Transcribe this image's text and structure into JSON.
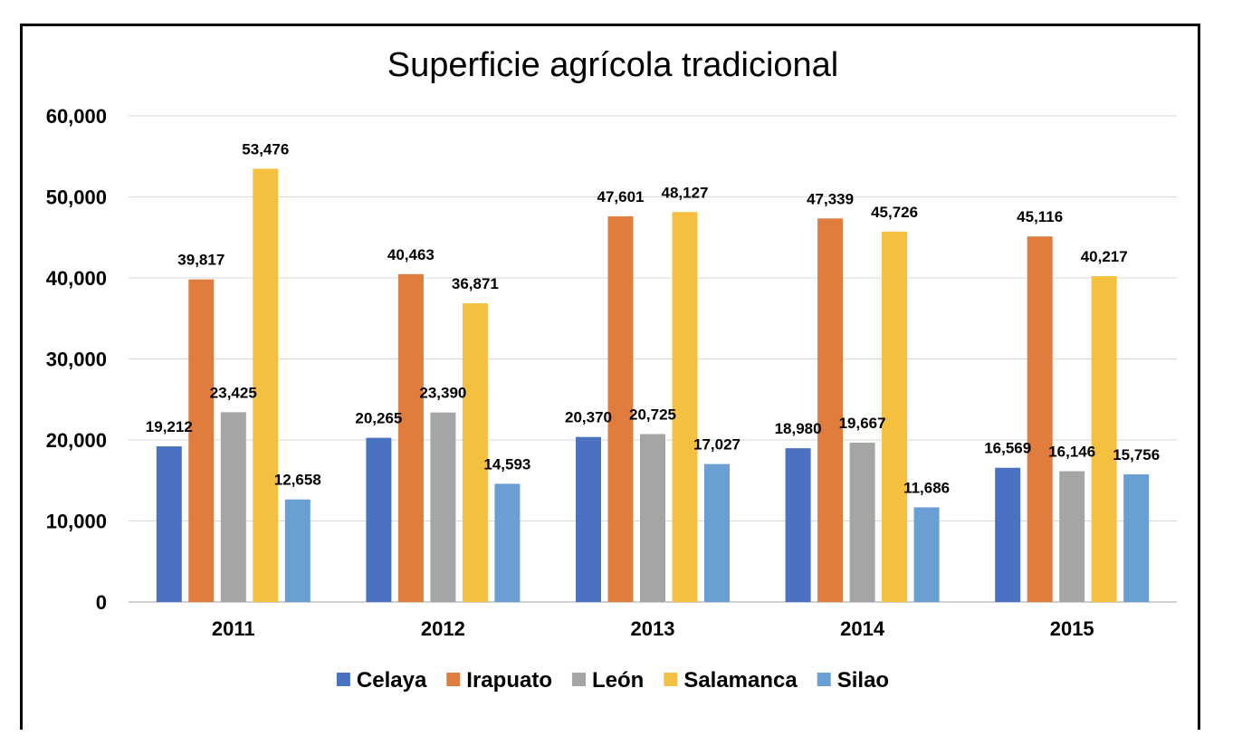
{
  "chart_data": {
    "type": "bar",
    "title": "Superficie agrícola tradicional",
    "xlabel": "",
    "ylabel": "",
    "categories": [
      "2011",
      "2012",
      "2013",
      "2014",
      "2015"
    ],
    "ylim": [
      0,
      60000
    ],
    "yticks": [
      0,
      10000,
      20000,
      30000,
      40000,
      50000,
      60000
    ],
    "ytick_labels": [
      "0",
      "10,000",
      "20,000",
      "30,000",
      "40,000",
      "50,000",
      "60,000"
    ],
    "grid": true,
    "legend_position": "bottom",
    "series": [
      {
        "name": "Celaya",
        "color": "#4a72c0",
        "values": [
          19212,
          20265,
          20370,
          18980,
          16569
        ],
        "labels": [
          "19,212",
          "20,265",
          "20,370",
          "18,980",
          "16,569"
        ]
      },
      {
        "name": "Irapuato",
        "color": "#e07c3e",
        "values": [
          39817,
          40463,
          47601,
          47339,
          45116
        ],
        "labels": [
          "39,817",
          "40,463",
          "47,601",
          "47,339",
          "45,116"
        ]
      },
      {
        "name": "León",
        "color": "#a5a5a5",
        "values": [
          23425,
          23390,
          20725,
          19667,
          16146
        ],
        "labels": [
          "23,425",
          "23,390",
          "20,725",
          "19,667",
          "16,146"
        ]
      },
      {
        "name": "Salamanca",
        "color": "#f5c040",
        "values": [
          53476,
          36871,
          48127,
          45726,
          40217
        ],
        "labels": [
          "53,476",
          "36,871",
          "48,127",
          "45,726",
          "40,217"
        ]
      },
      {
        "name": "Silao",
        "color": "#6a9fd4",
        "values": [
          12658,
          14593,
          17027,
          11686,
          15756
        ],
        "labels": [
          "12,658",
          "14,593",
          "17,027",
          "11,686",
          "15,756"
        ]
      }
    ]
  }
}
